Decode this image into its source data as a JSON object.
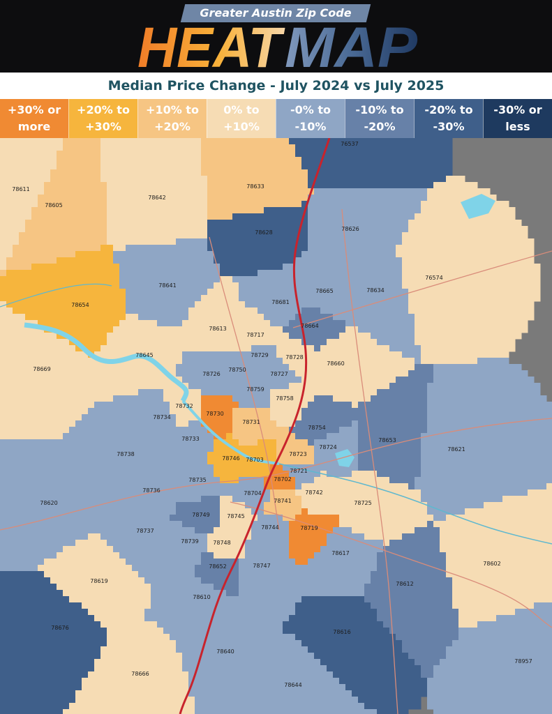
{
  "header": {
    "subtitle": "Greater Austin Zip Code",
    "title_part1": "HEAT",
    "title_part2": "MAP"
  },
  "map_subtitle": "Median Price Change - July 2024 vs July 2025",
  "legend": [
    {
      "label": "+30% or\nmore",
      "color": "#f08a33"
    },
    {
      "label": "+20% to\n+30%",
      "color": "#f6b53d"
    },
    {
      "label": "+10% to\n+20%",
      "color": "#f6c583"
    },
    {
      "label": "0% to\n+10%",
      "color": "#f6dcb4"
    },
    {
      "label": "-0% to\n-10%",
      "color": "#8fa6c5"
    },
    {
      "label": "-10% to\n-20%",
      "color": "#6781a8"
    },
    {
      "label": "-20% to\n-30%",
      "color": "#3f5f8a"
    },
    {
      "label": "-30% or\nless",
      "color": "#1e3a5f"
    }
  ],
  "colors": {
    "background_gray": "#7a7a7a",
    "highway": "#c8232c",
    "road": "#d98c7a",
    "water": "#7fd3e8"
  },
  "zip_codes": [
    {
      "zip": "76537",
      "band": 6
    },
    {
      "zip": "78611",
      "band": 3
    },
    {
      "zip": "78633",
      "band": 2
    },
    {
      "zip": "78605",
      "band": 2
    },
    {
      "zip": "78642",
      "band": 3
    },
    {
      "zip": "78628",
      "band": 6
    },
    {
      "zip": "78626",
      "band": 4
    },
    {
      "zip": "76574",
      "band": 3
    },
    {
      "zip": "78641",
      "band": 4
    },
    {
      "zip": "78665",
      "band": 4
    },
    {
      "zip": "78634",
      "band": 4
    },
    {
      "zip": "78654",
      "band": 1
    },
    {
      "zip": "78681",
      "band": 4
    },
    {
      "zip": "78664",
      "band": 5
    },
    {
      "zip": "78613",
      "band": 3
    },
    {
      "zip": "78717",
      "band": 3
    },
    {
      "zip": "78645",
      "band": 3
    },
    {
      "zip": "78729",
      "band": 4
    },
    {
      "zip": "78728",
      "band": 3
    },
    {
      "zip": "78660",
      "band": 3
    },
    {
      "zip": "78669",
      "band": 3
    },
    {
      "zip": "78726",
      "band": 4
    },
    {
      "zip": "78750",
      "band": 4
    },
    {
      "zip": "78727",
      "band": 4
    },
    {
      "zip": "78759",
      "band": 4
    },
    {
      "zip": "78758",
      "band": 3
    },
    {
      "zip": "78732",
      "band": 3
    },
    {
      "zip": "78730",
      "band": 0
    },
    {
      "zip": "78734",
      "band": 4
    },
    {
      "zip": "78731",
      "band": 2
    },
    {
      "zip": "78754",
      "band": 5
    },
    {
      "zip": "78653",
      "band": 5
    },
    {
      "zip": "78733",
      "band": 4
    },
    {
      "zip": "78724",
      "band": 4
    },
    {
      "zip": "78621",
      "band": 4
    },
    {
      "zip": "78738",
      "band": 4
    },
    {
      "zip": "78746",
      "band": 1
    },
    {
      "zip": "78703",
      "band": 1
    },
    {
      "zip": "78723",
      "band": 2
    },
    {
      "zip": "78721",
      "band": 4
    },
    {
      "zip": "78735",
      "band": 4
    },
    {
      "zip": "78702",
      "band": 0
    },
    {
      "zip": "78736",
      "band": 4
    },
    {
      "zip": "78704",
      "band": 4
    },
    {
      "zip": "78742",
      "band": 3
    },
    {
      "zip": "78620",
      "band": 4
    },
    {
      "zip": "78741",
      "band": 2
    },
    {
      "zip": "78725",
      "band": 3
    },
    {
      "zip": "78749",
      "band": 5
    },
    {
      "zip": "78745",
      "band": 3
    },
    {
      "zip": "78744",
      "band": 4
    },
    {
      "zip": "78719",
      "band": 0
    },
    {
      "zip": "78737",
      "band": 4
    },
    {
      "zip": "78739",
      "band": 4
    },
    {
      "zip": "78748",
      "band": 3
    },
    {
      "zip": "78617",
      "band": 4
    },
    {
      "zip": "78602",
      "band": 3
    },
    {
      "zip": "78652",
      "band": 5
    },
    {
      "zip": "78747",
      "band": 4
    },
    {
      "zip": "78619",
      "band": 3
    },
    {
      "zip": "78612",
      "band": 5
    },
    {
      "zip": "78610",
      "band": 4
    },
    {
      "zip": "78676",
      "band": 6
    },
    {
      "zip": "78616",
      "band": 6
    },
    {
      "zip": "78640",
      "band": 4
    },
    {
      "zip": "78957",
      "band": 4
    },
    {
      "zip": "78666",
      "band": 3
    },
    {
      "zip": "78644",
      "band": 4
    }
  ]
}
